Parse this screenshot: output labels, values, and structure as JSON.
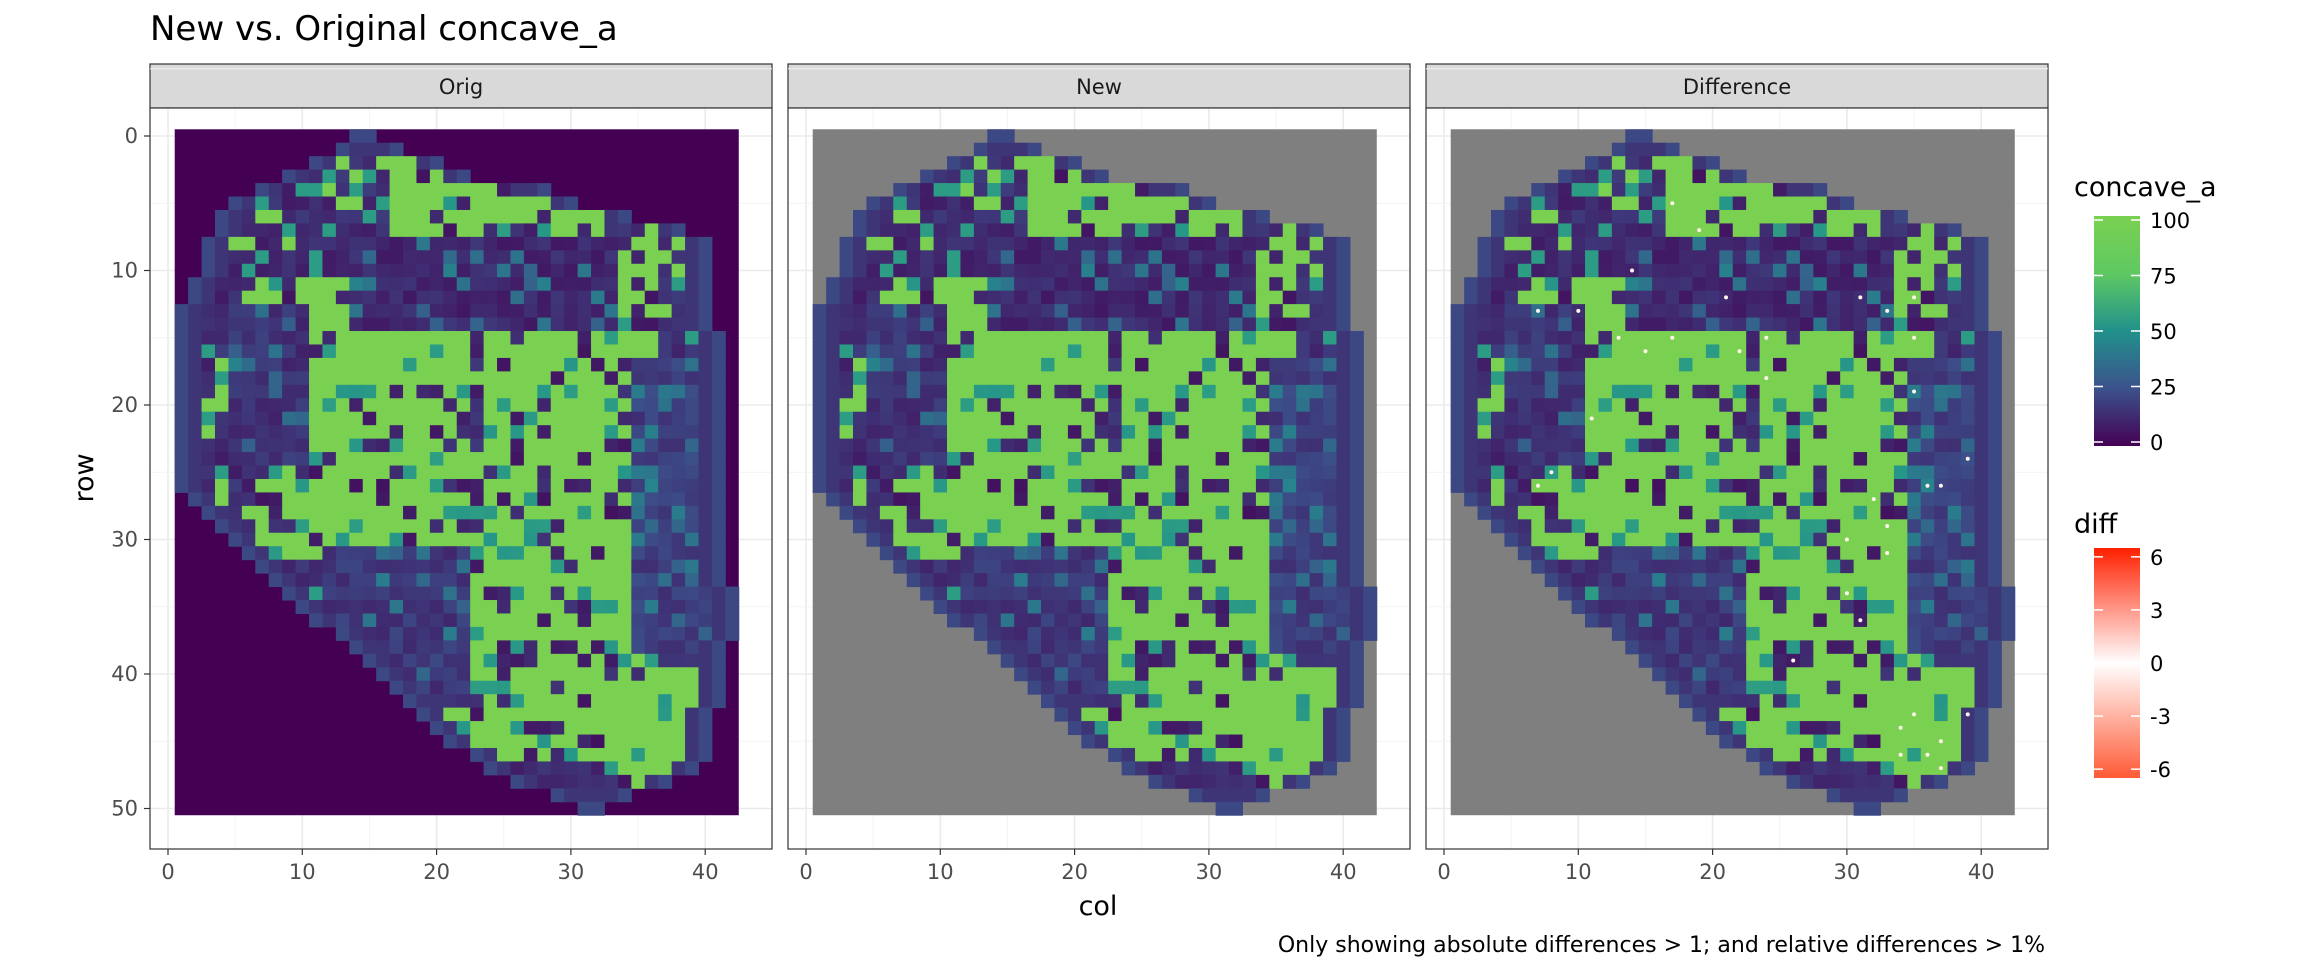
{
  "chart_data": {
    "type": "heatmap",
    "title": "New vs. Original concave_a",
    "xlabel": "col",
    "ylabel": "row",
    "caption": "Only showing absolute differences > 1; and relative differences > 1%",
    "xlim": [
      0,
      43
    ],
    "ylim": [
      51,
      -0.5
    ],
    "x_ticks": [
      "0",
      "10",
      "20",
      "30",
      "40"
    ],
    "y_ticks": [
      "0",
      "10",
      "20",
      "30",
      "40",
      "50"
    ],
    "panels": [
      {
        "label": "Orig",
        "background": "#440154"
      },
      {
        "label": "New",
        "background": "#7f7f7f"
      },
      {
        "label": "Difference",
        "background": "#7f7f7f"
      }
    ],
    "legends": {
      "concave_a": {
        "title": "concave_a",
        "breaks": [
          "100",
          "75",
          "50",
          "25",
          "0"
        ],
        "range": [
          0,
          100
        ],
        "colors": [
          "#440154",
          "#3b528b",
          "#21918c",
          "#5ec962",
          "#7ad151"
        ]
      },
      "diff": {
        "title": "diff",
        "breaks": [
          "6",
          "3",
          "0",
          "-3",
          "-6"
        ],
        "range": [
          -6.5,
          6.5
        ],
        "colors": [
          "#ff5a36",
          "#ffffff",
          "#ff2000"
        ]
      }
    },
    "grid_extent": {
      "col_min": 1,
      "col_max": 42,
      "row_min": 0,
      "row_max": 50
    },
    "outer_boundary_by_row": [
      [
        14,
        15
      ],
      [
        13,
        17
      ],
      [
        11,
        20
      ],
      [
        9,
        22
      ],
      [
        7,
        28
      ],
      [
        5,
        30
      ],
      [
        4,
        34
      ],
      [
        4,
        38
      ],
      [
        3,
        40
      ],
      [
        3,
        40
      ],
      [
        3,
        40
      ],
      [
        2,
        40
      ],
      [
        2,
        40
      ],
      [
        1,
        40
      ],
      [
        1,
        40
      ],
      [
        1,
        41
      ],
      [
        1,
        41
      ],
      [
        1,
        41
      ],
      [
        1,
        41
      ],
      [
        1,
        41
      ],
      [
        1,
        41
      ],
      [
        1,
        41
      ],
      [
        1,
        41
      ],
      [
        1,
        41
      ],
      [
        1,
        41
      ],
      [
        1,
        41
      ],
      [
        1,
        41
      ],
      [
        2,
        41
      ],
      [
        3,
        41
      ],
      [
        4,
        41
      ],
      [
        5,
        41
      ],
      [
        6,
        41
      ],
      [
        7,
        41
      ],
      [
        8,
        41
      ],
      [
        9,
        42
      ],
      [
        10,
        42
      ],
      [
        11,
        42
      ],
      [
        13,
        42
      ],
      [
        14,
        41
      ],
      [
        15,
        41
      ],
      [
        16,
        41
      ],
      [
        17,
        41
      ],
      [
        18,
        41
      ],
      [
        19,
        40
      ],
      [
        20,
        40
      ],
      [
        21,
        40
      ],
      [
        23,
        40
      ],
      [
        24,
        39
      ],
      [
        26,
        37
      ],
      [
        29,
        34
      ],
      [
        31,
        32
      ]
    ],
    "high_value_zones": [
      {
        "col": [
          7,
          22
        ],
        "row": [
          11,
          31
        ],
        "value": 100
      },
      {
        "col": [
          24,
          36
        ],
        "row": [
          8,
          30
        ],
        "value": 100
      },
      {
        "col": [
          21,
          35
        ],
        "row": [
          30,
          46
        ],
        "value": 100
      },
      {
        "col": [
          17,
          32
        ],
        "row": [
          2,
          8
        ],
        "value": 100
      },
      {
        "col": [
          34,
          39
        ],
        "row": [
          40,
          48
        ],
        "value": 100
      }
    ],
    "low_value_zones": [
      {
        "col": [
          14,
          33
        ],
        "row": [
          8,
          14
        ],
        "value": 5
      },
      {
        "col": [
          5,
          10
        ],
        "row": [
          13,
          24
        ],
        "value": 8
      },
      {
        "col": [
          12,
          22
        ],
        "row": [
          31,
          42
        ],
        "value": 10
      },
      {
        "col": [
          35,
          41
        ],
        "row": [
          17,
          38
        ],
        "value": 12
      }
    ],
    "difference_points": [
      {
        "col": 7,
        "row": 13
      },
      {
        "col": 10,
        "row": 13
      },
      {
        "col": 13,
        "row": 15
      },
      {
        "col": 14,
        "row": 10
      },
      {
        "col": 15,
        "row": 16
      },
      {
        "col": 17,
        "row": 5
      },
      {
        "col": 17,
        "row": 15
      },
      {
        "col": 19,
        "row": 7
      },
      {
        "col": 21,
        "row": 12
      },
      {
        "col": 22,
        "row": 16
      },
      {
        "col": 24,
        "row": 15
      },
      {
        "col": 24,
        "row": 18
      },
      {
        "col": 31,
        "row": 12
      },
      {
        "col": 33,
        "row": 13
      },
      {
        "col": 35,
        "row": 12
      },
      {
        "col": 35,
        "row": 15
      },
      {
        "col": 35,
        "row": 19
      },
      {
        "col": 7,
        "row": 26
      },
      {
        "col": 8,
        "row": 25
      },
      {
        "col": 11,
        "row": 21
      },
      {
        "col": 36,
        "row": 26
      },
      {
        "col": 37,
        "row": 26
      },
      {
        "col": 39,
        "row": 24
      },
      {
        "col": 30,
        "row": 30
      },
      {
        "col": 32,
        "row": 27
      },
      {
        "col": 33,
        "row": 29
      },
      {
        "col": 33,
        "row": 31
      },
      {
        "col": 30,
        "row": 34
      },
      {
        "col": 31,
        "row": 36
      },
      {
        "col": 26,
        "row": 39
      },
      {
        "col": 34,
        "row": 44
      },
      {
        "col": 35,
        "row": 43
      },
      {
        "col": 37,
        "row": 45
      },
      {
        "col": 39,
        "row": 43
      },
      {
        "col": 34,
        "row": 46
      },
      {
        "col": 36,
        "row": 46
      },
      {
        "col": 37,
        "row": 47
      }
    ]
  }
}
